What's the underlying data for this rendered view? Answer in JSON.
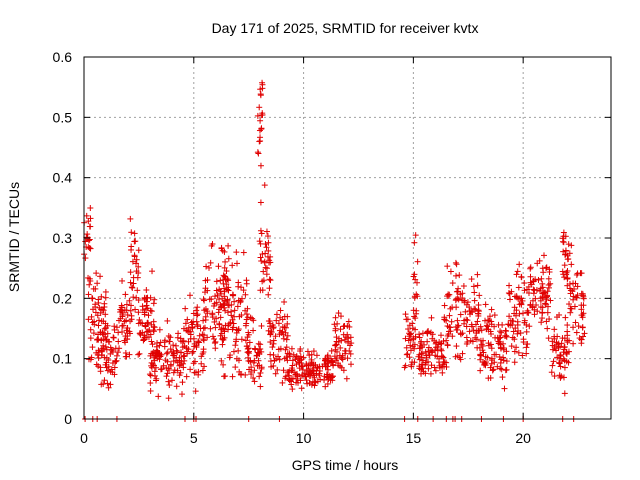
{
  "chart_data": {
    "type": "scatter",
    "title": "Day 171 of 2025, SRMTID for receiver kvtx",
    "xlabel": "GPS time / hours",
    "ylabel": "SRMTID / TECUs",
    "xlim": [
      0,
      24
    ],
    "ylim": [
      0,
      0.6
    ],
    "xticks": [
      0,
      5,
      10,
      15,
      20
    ],
    "xtick_labels": [
      "0",
      "5",
      "10",
      "15",
      "20"
    ],
    "yticks": [
      0,
      0.1,
      0.2,
      0.3,
      0.4,
      0.5,
      0.6
    ],
    "ytick_labels": [
      "0",
      "0.1",
      "0.2",
      "0.3",
      "0.4",
      "0.5",
      "0.6"
    ],
    "grid": true,
    "marker": "plus",
    "color": "#e00000",
    "series": [
      {
        "name": "SRMTID",
        "profile_description": "segments of [start_hour, end_hour, base_value, amplitude]",
        "segments": [
          [
            0.0,
            0.3,
            0.3,
            0.05
          ],
          [
            0.2,
            1.0,
            0.16,
            0.06
          ],
          [
            0.6,
            1.5,
            0.11,
            0.04
          ],
          [
            1.5,
            2.2,
            0.15,
            0.05
          ],
          [
            2.1,
            2.5,
            0.26,
            0.07
          ],
          [
            2.4,
            3.2,
            0.17,
            0.05
          ],
          [
            3.0,
            4.6,
            0.1,
            0.04
          ],
          [
            4.6,
            5.5,
            0.13,
            0.05
          ],
          [
            5.4,
            6.6,
            0.2,
            0.07
          ],
          [
            6.2,
            7.5,
            0.17,
            0.07
          ],
          [
            7.4,
            8.1,
            0.11,
            0.04
          ],
          [
            7.9,
            8.2,
            0.49,
            0.05
          ],
          [
            8.0,
            8.5,
            0.27,
            0.07
          ],
          [
            8.4,
            9.3,
            0.12,
            0.05
          ],
          [
            9.3,
            11.4,
            0.08,
            0.025
          ],
          [
            11.4,
            12.2,
            0.12,
            0.04
          ],
          [
            14.6,
            15.1,
            0.13,
            0.04
          ],
          [
            15.0,
            15.2,
            0.22,
            0.05
          ],
          [
            15.2,
            16.4,
            0.11,
            0.035
          ],
          [
            16.4,
            17.3,
            0.17,
            0.06
          ],
          [
            17.3,
            18.0,
            0.18,
            0.05
          ],
          [
            18.0,
            19.3,
            0.12,
            0.05
          ],
          [
            19.3,
            20.3,
            0.17,
            0.06
          ],
          [
            20.3,
            21.3,
            0.21,
            0.05
          ],
          [
            21.3,
            22.0,
            0.11,
            0.04
          ],
          [
            21.8,
            22.2,
            0.27,
            0.04
          ],
          [
            22.0,
            22.8,
            0.18,
            0.06
          ]
        ],
        "zero_points_x": [
          0.05,
          0.4,
          0.6,
          1.5,
          4.6,
          5.0,
          5.1,
          7.5,
          8.9,
          14.6,
          15.2,
          15.9,
          16.5,
          16.8,
          16.9,
          17.2,
          18.1,
          19.1,
          20.0,
          21.8,
          22.3
        ]
      }
    ]
  }
}
